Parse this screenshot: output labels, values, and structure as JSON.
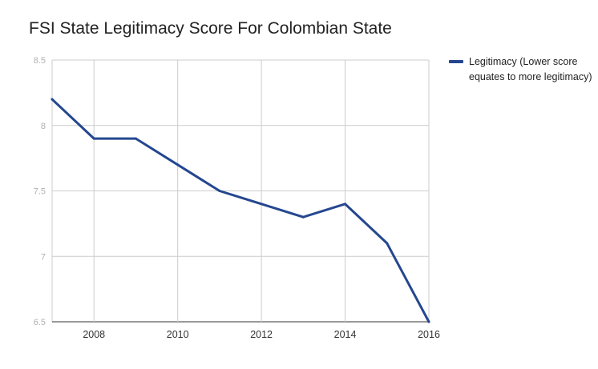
{
  "chart_data": {
    "type": "line",
    "title": "FSI State Legitimacy Score For Colombian State",
    "xlabel": "",
    "ylabel": "",
    "x": [
      2007,
      2008,
      2009,
      2010,
      2011,
      2012,
      2013,
      2014,
      2015,
      2016
    ],
    "series": [
      {
        "name": "Legitimacy (Lower score equates to more legitimacy)",
        "color": "#24478f",
        "values": [
          8.2,
          7.9,
          7.9,
          7.7,
          7.5,
          7.4,
          7.3,
          7.4,
          7.1,
          6.5
        ]
      }
    ],
    "xlim": [
      2007,
      2016
    ],
    "ylim": [
      6.5,
      8.5
    ],
    "x_ticks": [
      2008,
      2010,
      2012,
      2014,
      2016
    ],
    "y_ticks": [
      6.5,
      7,
      7.5,
      8,
      8.5
    ],
    "x_tick_labels": [
      "2008",
      "2010",
      "2012",
      "2014",
      "2016"
    ],
    "y_tick_labels": [
      "6.5",
      "7",
      "7.5",
      "8",
      "8.5"
    ],
    "grid": true,
    "legend_position": "right"
  }
}
